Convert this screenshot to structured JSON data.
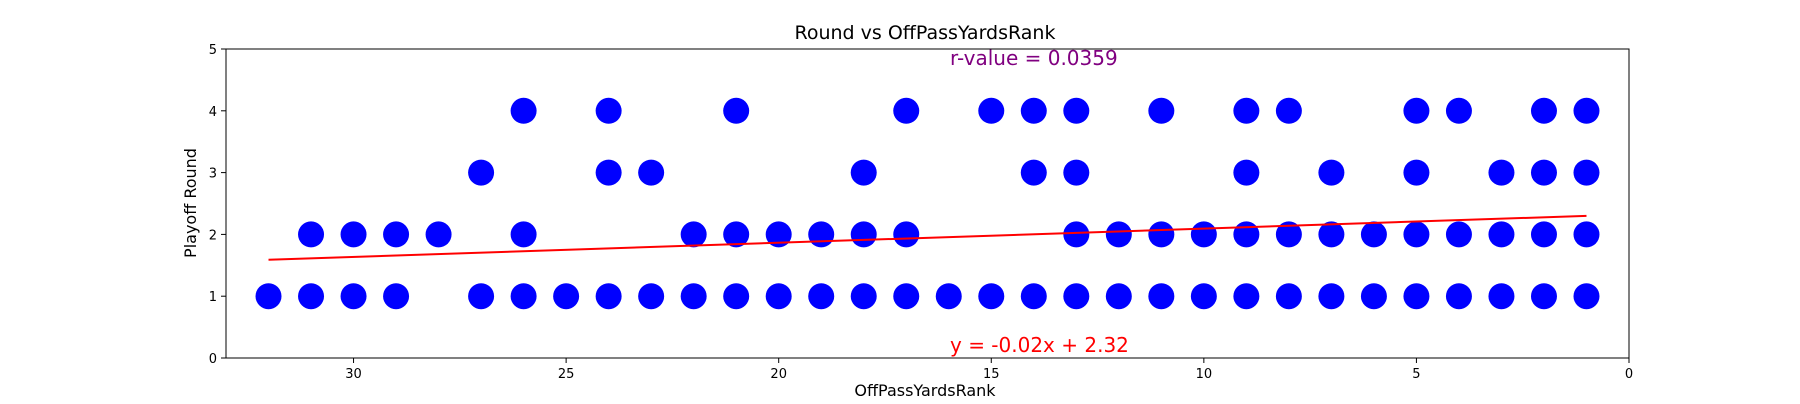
{
  "chart_data": {
    "type": "scatter",
    "title": "Round vs OffPassYardsRank",
    "xlabel": "OffPassYardsRank",
    "ylabel": "Playoff Round",
    "xlim": [
      33,
      0
    ],
    "ylim": [
      0,
      5
    ],
    "x_inverted": true,
    "xticks": [
      30,
      25,
      20,
      15,
      10,
      5,
      0
    ],
    "yticks": [
      0,
      1,
      2,
      3,
      4,
      5
    ],
    "grid": false,
    "annotations": {
      "r_value": "r-value = 0.0359",
      "equation": "y = -0.02x + 2.32"
    },
    "colors": {
      "points": "#0000ff",
      "fit_line": "#ff0000",
      "r_value_text": "#800080",
      "equation_text": "#ff0000"
    },
    "points": [
      {
        "x": 32,
        "y": 1
      },
      {
        "x": 31,
        "y": 1
      },
      {
        "x": 31,
        "y": 2
      },
      {
        "x": 30,
        "y": 1
      },
      {
        "x": 30,
        "y": 2
      },
      {
        "x": 29,
        "y": 1
      },
      {
        "x": 29,
        "y": 2
      },
      {
        "x": 28,
        "y": 2
      },
      {
        "x": 27,
        "y": 1
      },
      {
        "x": 27,
        "y": 3
      },
      {
        "x": 26,
        "y": 1
      },
      {
        "x": 26,
        "y": 2
      },
      {
        "x": 26,
        "y": 4
      },
      {
        "x": 25,
        "y": 1
      },
      {
        "x": 24,
        "y": 1
      },
      {
        "x": 24,
        "y": 3
      },
      {
        "x": 24,
        "y": 4
      },
      {
        "x": 23,
        "y": 1
      },
      {
        "x": 23,
        "y": 3
      },
      {
        "x": 22,
        "y": 1
      },
      {
        "x": 22,
        "y": 2
      },
      {
        "x": 21,
        "y": 1
      },
      {
        "x": 21,
        "y": 2
      },
      {
        "x": 21,
        "y": 4
      },
      {
        "x": 20,
        "y": 1
      },
      {
        "x": 20,
        "y": 2
      },
      {
        "x": 19,
        "y": 1
      },
      {
        "x": 19,
        "y": 2
      },
      {
        "x": 18,
        "y": 1
      },
      {
        "x": 18,
        "y": 2
      },
      {
        "x": 18,
        "y": 3
      },
      {
        "x": 17,
        "y": 1
      },
      {
        "x": 17,
        "y": 2
      },
      {
        "x": 17,
        "y": 4
      },
      {
        "x": 16,
        "y": 1
      },
      {
        "x": 15,
        "y": 1
      },
      {
        "x": 15,
        "y": 4
      },
      {
        "x": 14,
        "y": 1
      },
      {
        "x": 14,
        "y": 3
      },
      {
        "x": 14,
        "y": 4
      },
      {
        "x": 13,
        "y": 1
      },
      {
        "x": 13,
        "y": 2
      },
      {
        "x": 13,
        "y": 3
      },
      {
        "x": 13,
        "y": 4
      },
      {
        "x": 12,
        "y": 1
      },
      {
        "x": 12,
        "y": 2
      },
      {
        "x": 11,
        "y": 1
      },
      {
        "x": 11,
        "y": 2
      },
      {
        "x": 11,
        "y": 4
      },
      {
        "x": 10,
        "y": 1
      },
      {
        "x": 10,
        "y": 2
      },
      {
        "x": 9,
        "y": 1
      },
      {
        "x": 9,
        "y": 2
      },
      {
        "x": 9,
        "y": 3
      },
      {
        "x": 9,
        "y": 4
      },
      {
        "x": 8,
        "y": 1
      },
      {
        "x": 8,
        "y": 2
      },
      {
        "x": 8,
        "y": 4
      },
      {
        "x": 7,
        "y": 1
      },
      {
        "x": 7,
        "y": 2
      },
      {
        "x": 7,
        "y": 3
      },
      {
        "x": 6,
        "y": 1
      },
      {
        "x": 6,
        "y": 2
      },
      {
        "x": 5,
        "y": 1
      },
      {
        "x": 5,
        "y": 2
      },
      {
        "x": 5,
        "y": 3
      },
      {
        "x": 5,
        "y": 4
      },
      {
        "x": 4,
        "y": 1
      },
      {
        "x": 4,
        "y": 2
      },
      {
        "x": 4,
        "y": 4
      },
      {
        "x": 3,
        "y": 1
      },
      {
        "x": 3,
        "y": 2
      },
      {
        "x": 3,
        "y": 3
      },
      {
        "x": 2,
        "y": 1
      },
      {
        "x": 2,
        "y": 2
      },
      {
        "x": 2,
        "y": 3
      },
      {
        "x": 2,
        "y": 4
      },
      {
        "x": 1,
        "y": 1
      },
      {
        "x": 1,
        "y": 2
      },
      {
        "x": 1,
        "y": 3
      },
      {
        "x": 1,
        "y": 4
      }
    ],
    "fit_line": {
      "x": [
        32,
        1
      ],
      "y": [
        1.59,
        2.3
      ]
    }
  }
}
